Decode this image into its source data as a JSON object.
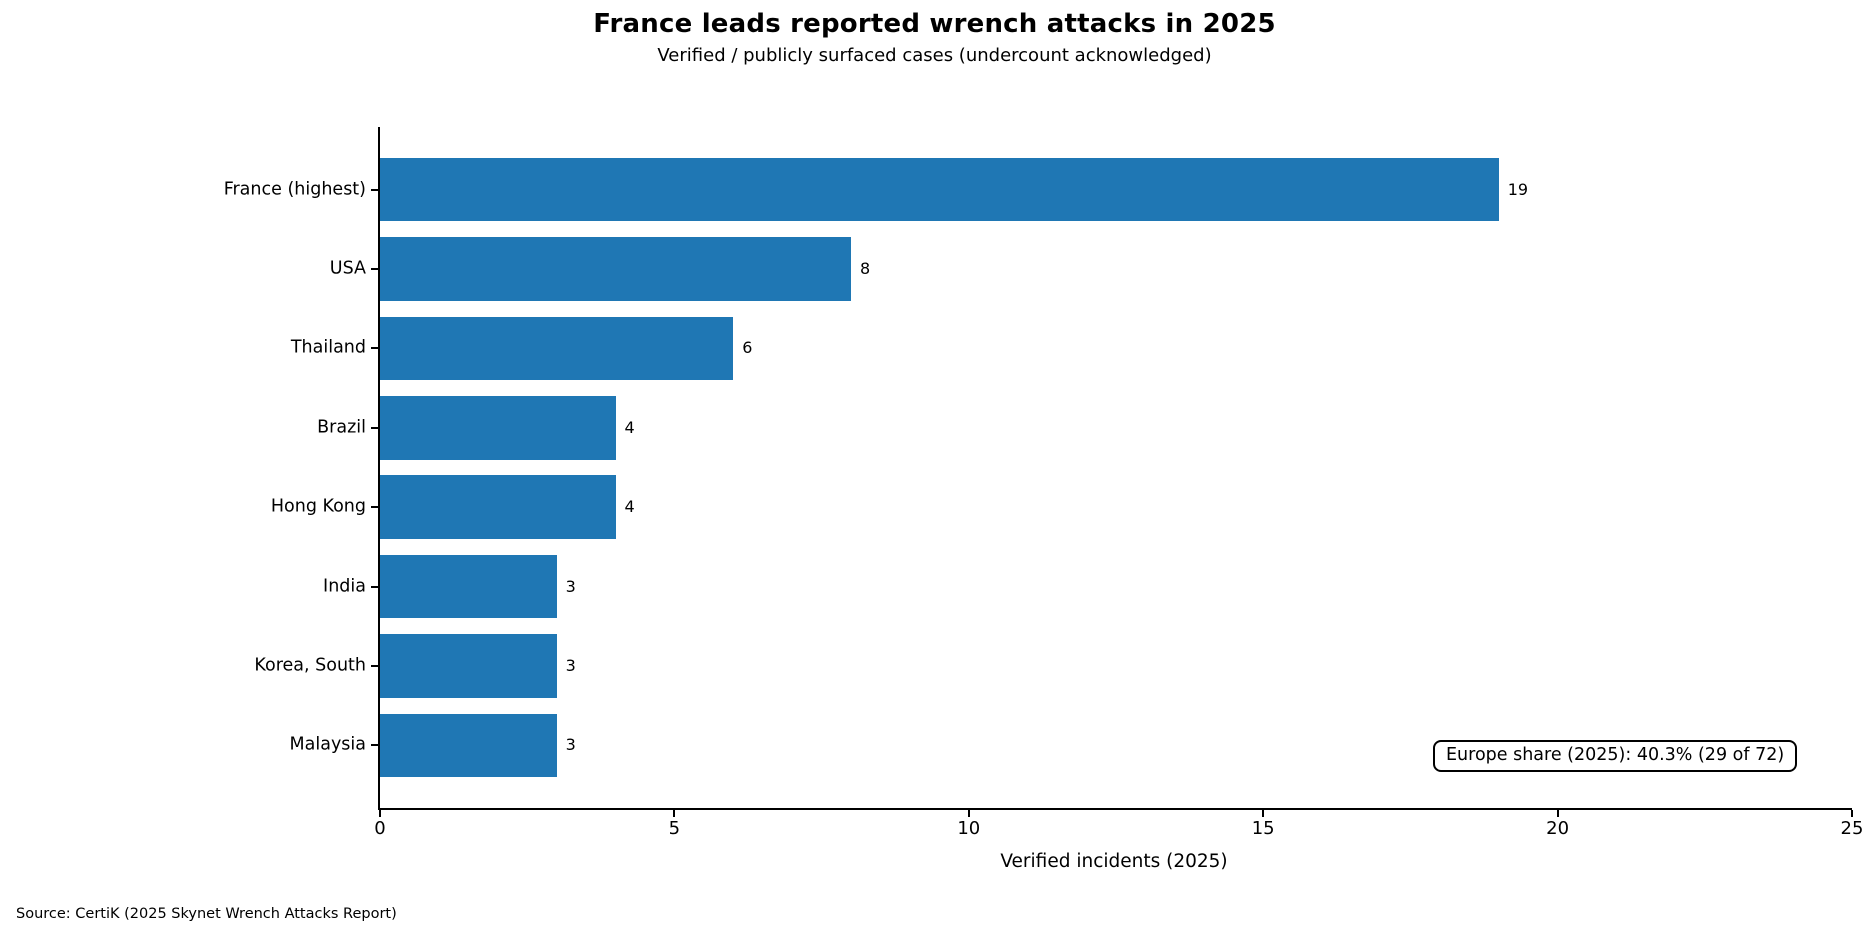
{
  "chart_data": {
    "type": "bar",
    "orientation": "horizontal",
    "title": "France leads reported wrench attacks in 2025",
    "subtitle": "Verified / publicly surfaced cases (undercount acknowledged)",
    "categories": [
      "France (highest)",
      "USA",
      "Thailand",
      "Brazil",
      "Hong Kong",
      "India",
      "Korea, South",
      "Malaysia"
    ],
    "values": [
      19,
      8,
      6,
      4,
      4,
      3,
      3,
      3
    ],
    "xlabel": "Verified incidents (2025)",
    "xlim": [
      0,
      25
    ],
    "xticks": [
      0,
      5,
      10,
      15,
      20,
      25
    ],
    "bar_color": "#1f77b4",
    "grid": "off",
    "legend": "none",
    "annotation": "Europe share (2025): 40.3% (29 of 72)"
  },
  "footer": {
    "source": "Source: CertiK (2025 Skynet Wrench Attacks Report)"
  }
}
